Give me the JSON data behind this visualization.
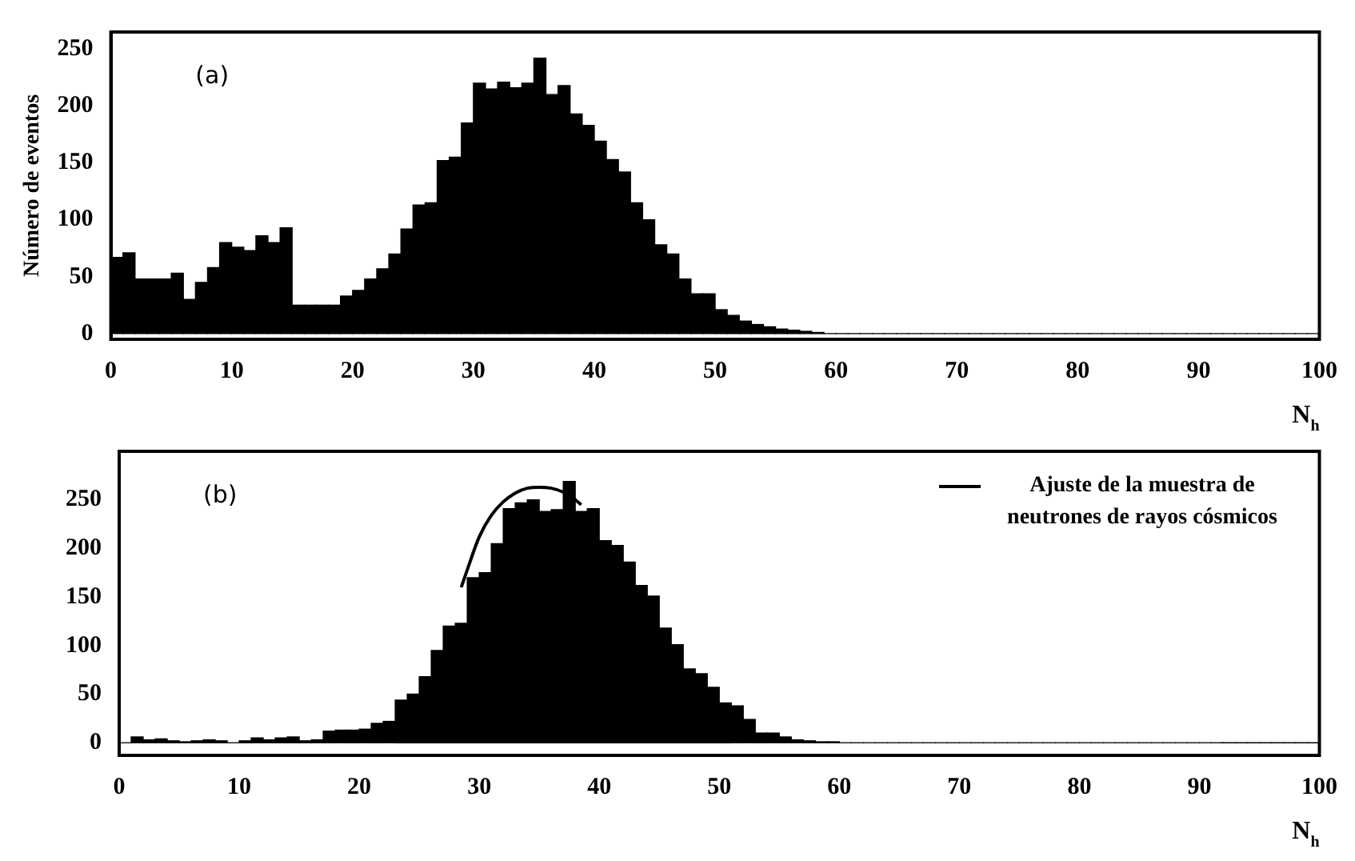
{
  "chart_data": [
    {
      "type": "histogram",
      "ylabel": "Número de eventos",
      "xlabel": "N$_{h}$",
      "annotations": [
        "(a)"
      ],
      "color": "#000000",
      "bins": [
        0,
        1,
        2,
        3,
        4,
        5,
        6,
        7,
        8,
        9,
        10,
        11,
        12,
        13,
        14,
        15,
        16,
        17,
        18,
        19,
        20,
        21,
        22,
        23,
        24,
        25,
        26,
        27,
        28,
        29,
        30,
        31,
        32,
        33,
        34,
        35,
        36,
        37,
        38,
        39,
        40,
        41,
        42,
        43,
        44,
        45,
        46,
        47,
        48,
        49,
        50,
        51,
        52,
        53,
        54,
        55,
        56,
        57,
        58,
        59,
        60,
        61,
        62,
        63,
        64,
        65,
        66,
        67,
        68,
        69,
        70,
        71,
        72,
        73,
        74,
        75,
        76,
        77,
        78,
        79,
        80,
        81,
        82,
        83,
        84,
        85,
        86,
        87,
        88,
        89,
        90,
        91,
        92,
        93,
        94,
        95,
        96,
        97,
        98,
        99,
        100
      ],
      "values": [
        67,
        71,
        48,
        48,
        48,
        53,
        30,
        45,
        58,
        80,
        76,
        73,
        86,
        80,
        93,
        25,
        25,
        25,
        25,
        33,
        38,
        48,
        57,
        70,
        92,
        113,
        115,
        152,
        155,
        185,
        220,
        215,
        221,
        216,
        220,
        242,
        210,
        218,
        193,
        183,
        169,
        153,
        142,
        115,
        100,
        78,
        70,
        48,
        35,
        35,
        21,
        16,
        11,
        8,
        6,
        4,
        3,
        2,
        1,
        0,
        0,
        0,
        0,
        0,
        0,
        0,
        0,
        0,
        0,
        0,
        0,
        0,
        0,
        0,
        0,
        0,
        0,
        0,
        0,
        0,
        0,
        0,
        0,
        0,
        0,
        0,
        0,
        0,
        0,
        0,
        0,
        0,
        0,
        0,
        0,
        0,
        0,
        0,
        0,
        0
      ],
      "xlim": [
        0,
        100
      ],
      "xticks": [
        0,
        10,
        20,
        30,
        40,
        50,
        60,
        70,
        80,
        90,
        100
      ],
      "ylim": [
        -5,
        265
      ],
      "yticks": [
        0,
        50,
        100,
        150,
        200,
        250
      ]
    },
    {
      "type": "histogram",
      "xlabel": "N$_{h}$",
      "annotations": [
        "(b)"
      ],
      "color": "#000000",
      "legend": "top right",
      "bins": [
        0,
        1,
        2,
        3,
        4,
        5,
        6,
        7,
        8,
        9,
        10,
        11,
        12,
        13,
        14,
        15,
        16,
        17,
        18,
        19,
        20,
        21,
        22,
        23,
        24,
        25,
        26,
        27,
        28,
        29,
        30,
        31,
        32,
        33,
        34,
        35,
        36,
        37,
        38,
        39,
        40,
        41,
        42,
        43,
        44,
        45,
        46,
        47,
        48,
        49,
        50,
        51,
        52,
        53,
        54,
        55,
        56,
        57,
        58,
        59,
        60,
        61,
        62,
        63,
        64,
        65,
        66,
        67,
        68,
        69,
        70,
        71,
        72,
        73,
        74,
        75,
        76,
        77,
        78,
        79,
        80,
        81,
        82,
        83,
        84,
        85,
        86,
        87,
        88,
        89,
        90,
        91,
        92,
        93,
        94,
        95,
        96,
        97,
        98,
        99,
        100
      ],
      "values": [
        0,
        6,
        3,
        4,
        2,
        1,
        2,
        3,
        2,
        0,
        2,
        5,
        3,
        5,
        6,
        2,
        3,
        12,
        13,
        13,
        14,
        20,
        22,
        44,
        50,
        68,
        95,
        120,
        123,
        170,
        175,
        205,
        241,
        247,
        250,
        238,
        240,
        269,
        238,
        241,
        208,
        203,
        186,
        162,
        151,
        118,
        101,
        76,
        71,
        57,
        41,
        38,
        24,
        10,
        10,
        6,
        3,
        2,
        1,
        1,
        0,
        0,
        0,
        0,
        0,
        0,
        0,
        0,
        0,
        0,
        0,
        0,
        0,
        0,
        0,
        0,
        0,
        0,
        0,
        0,
        0,
        0,
        0,
        0,
        0,
        0,
        0,
        0,
        0,
        0,
        0,
        0,
        0,
        0,
        0,
        0,
        0,
        0,
        0,
        0
      ],
      "series": [
        {
          "type": "line",
          "name": "Ajuste de la muestra de neutrones de rayos cósmicos",
          "color": "#000000",
          "x": [
            28.5,
            29,
            30,
            31,
            32,
            33,
            34,
            35,
            36,
            37,
            38,
            38.5
          ],
          "values": [
            160,
            178,
            212,
            234,
            248,
            257,
            262,
            263,
            262,
            258,
            250,
            245
          ]
        }
      ],
      "xlim": [
        0,
        100
      ],
      "xticks": [
        0,
        10,
        20,
        30,
        40,
        50,
        60,
        70,
        80,
        90,
        100
      ],
      "ylim": [
        -13,
        300
      ],
      "yticks": [
        0,
        50,
        100,
        150,
        200,
        250
      ]
    }
  ]
}
